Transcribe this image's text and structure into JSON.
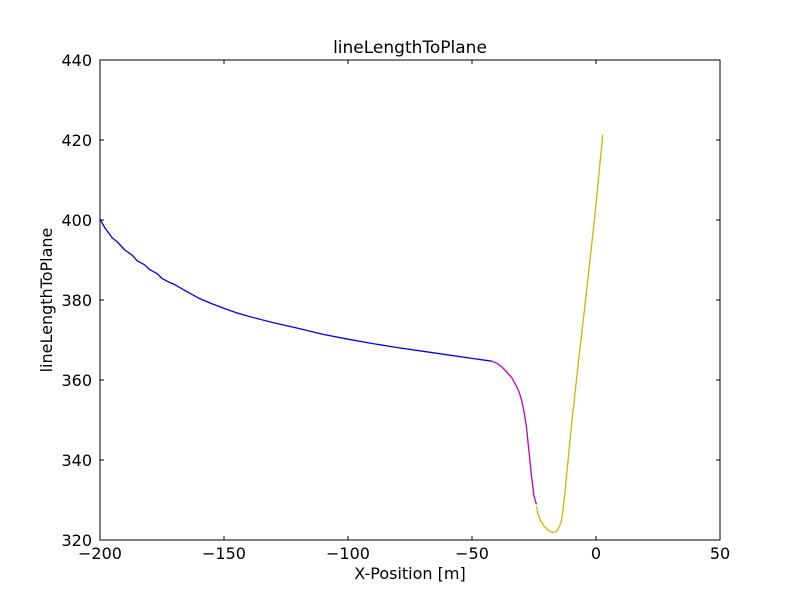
{
  "chart_data": {
    "type": "line",
    "title": "lineLengthToPlane",
    "xlabel": "X-Position [m]",
    "ylabel": "lineLengthToPlane",
    "xlim": [
      -200,
      50
    ],
    "ylim": [
      320,
      440
    ],
    "xticks": [
      -200,
      -150,
      -100,
      -50,
      0,
      50
    ],
    "yticks": [
      320,
      340,
      360,
      380,
      400,
      420,
      440
    ],
    "xtick_labels": [
      "−200",
      "−150",
      "−100",
      "−50",
      "0",
      "50"
    ],
    "ytick_labels": [
      "320",
      "340",
      "360",
      "380",
      "400",
      "420",
      "440"
    ],
    "grid": false,
    "legend": "none",
    "series": [
      {
        "color": "#0000ff",
        "x": [
          -200,
          -198,
          -195,
          -193,
          -190,
          -187,
          -185,
          -182,
          -180,
          -177,
          -175,
          -172,
          -170,
          -165,
          -160,
          -155,
          -150,
          -145,
          -140,
          -130,
          -120,
          -110,
          -100,
          -90,
          -80,
          -70,
          -60,
          -50,
          -42
        ],
        "y": [
          400.2,
          398.0,
          395.5,
          394.5,
          392.5,
          391.2,
          389.8,
          388.8,
          387.6,
          386.6,
          385.4,
          384.4,
          383.9,
          382.1,
          380.4,
          379.1,
          377.9,
          376.8,
          375.9,
          374.3,
          372.9,
          371.4,
          370.2,
          369.1,
          368.1,
          367.2,
          366.3,
          365.4,
          364.7
        ]
      },
      {
        "color": "#bf00bf",
        "x": [
          -42,
          -40,
          -38,
          -36,
          -34,
          -32,
          -31,
          -30,
          -29,
          -28,
          -27,
          -26,
          -25,
          -24
        ],
        "y": [
          364.7,
          364.2,
          363.3,
          362.0,
          360.6,
          358.4,
          357.0,
          355.0,
          352.0,
          348.0,
          342.0,
          336.0,
          331.0,
          328.9
        ]
      },
      {
        "color": "#bfbf00",
        "x": [
          -24,
          -23.5,
          -22.5,
          -21,
          -19,
          -17.5,
          -16,
          -14.8,
          -14,
          -13.5,
          -12.5,
          -10,
          -7,
          -4,
          -1,
          0.5,
          2.7
        ],
        "y": [
          328.4,
          326.8,
          325.0,
          323.5,
          322.3,
          321.9,
          322.1,
          323.3,
          324.6,
          326.5,
          332.0,
          348.0,
          365.0,
          381.0,
          398.0,
          407.0,
          421.3
        ]
      }
    ]
  }
}
